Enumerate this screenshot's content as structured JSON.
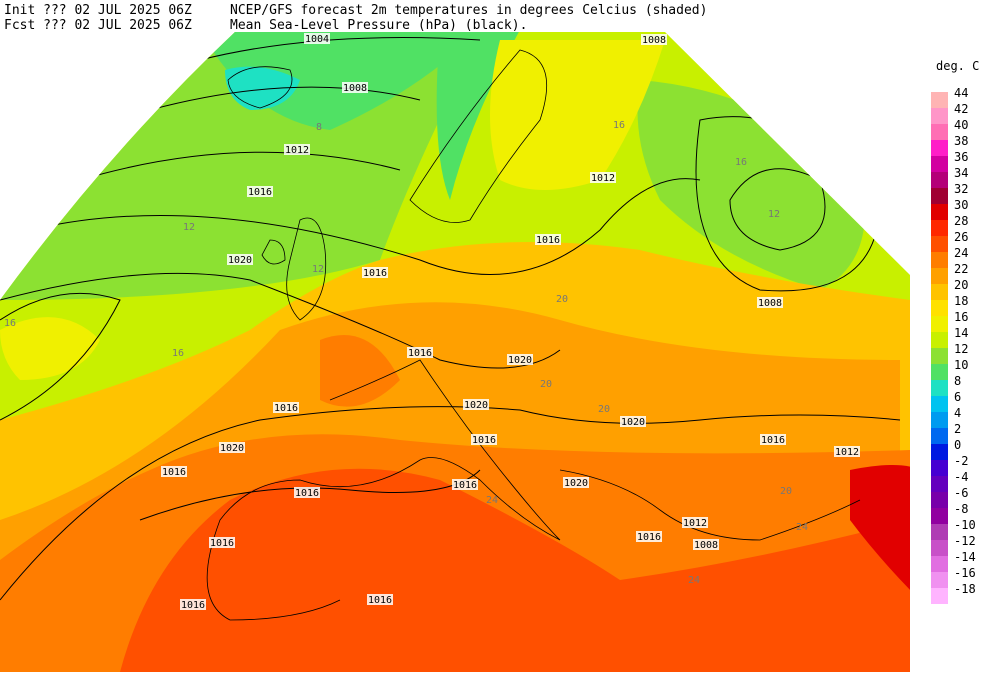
{
  "header": {
    "init": "Init  ??? 02 JUL 2025 06Z",
    "fcst": "Fcst ??? 02 JUL 2025 06Z",
    "title": "NCEP/GFS forecast 2m temperatures in degrees Celcius (shaded)",
    "subtitle": "Mean Sea-Level Pressure (hPa) (black)."
  },
  "legend": {
    "title": "deg. C",
    "labels": [
      44,
      42,
      40,
      38,
      36,
      34,
      32,
      30,
      28,
      26,
      24,
      22,
      20,
      18,
      16,
      14,
      12,
      10,
      8,
      6,
      4,
      2,
      0,
      -2,
      -4,
      -6,
      -8,
      -10,
      -12,
      -14,
      -16,
      -18
    ],
    "colors": [
      "#ffb4b4",
      "#ff96c8",
      "#ff6eb4",
      "#ff1ec8",
      "#d200a0",
      "#b40078",
      "#a00032",
      "#e10000",
      "#ff2800",
      "#ff5000",
      "#ff7d00",
      "#ffa000",
      "#ffc300",
      "#ffe100",
      "#f0f000",
      "#c8f000",
      "#8ce132",
      "#50e164",
      "#1ee1c3",
      "#00c3f0",
      "#009bf0",
      "#0069f0",
      "#0019e1",
      "#4600d2",
      "#6400be",
      "#7800aa",
      "#9100a0",
      "#af3cb4",
      "#c850c8",
      "#e16ee1",
      "#f091f0",
      "#ffb4ff"
    ]
  },
  "isobar_labels": [
    "1004",
    "1008",
    "1012",
    "1016",
    "1020",
    "1016",
    "1016",
    "1020",
    "1020",
    "1020",
    "1016",
    "1012",
    "1008",
    "1012",
    "1016",
    "1016",
    "1020",
    "1016",
    "1016",
    "1016",
    "1016",
    "1020",
    "1012",
    "1008",
    "1016",
    "1016",
    "1016",
    "1016",
    "1008"
  ],
  "temperature_labels": [
    "16",
    "16",
    "12",
    "12",
    "8",
    "20",
    "20",
    "24",
    "24",
    "24",
    "16",
    "16",
    "12",
    "20",
    "20"
  ]
}
